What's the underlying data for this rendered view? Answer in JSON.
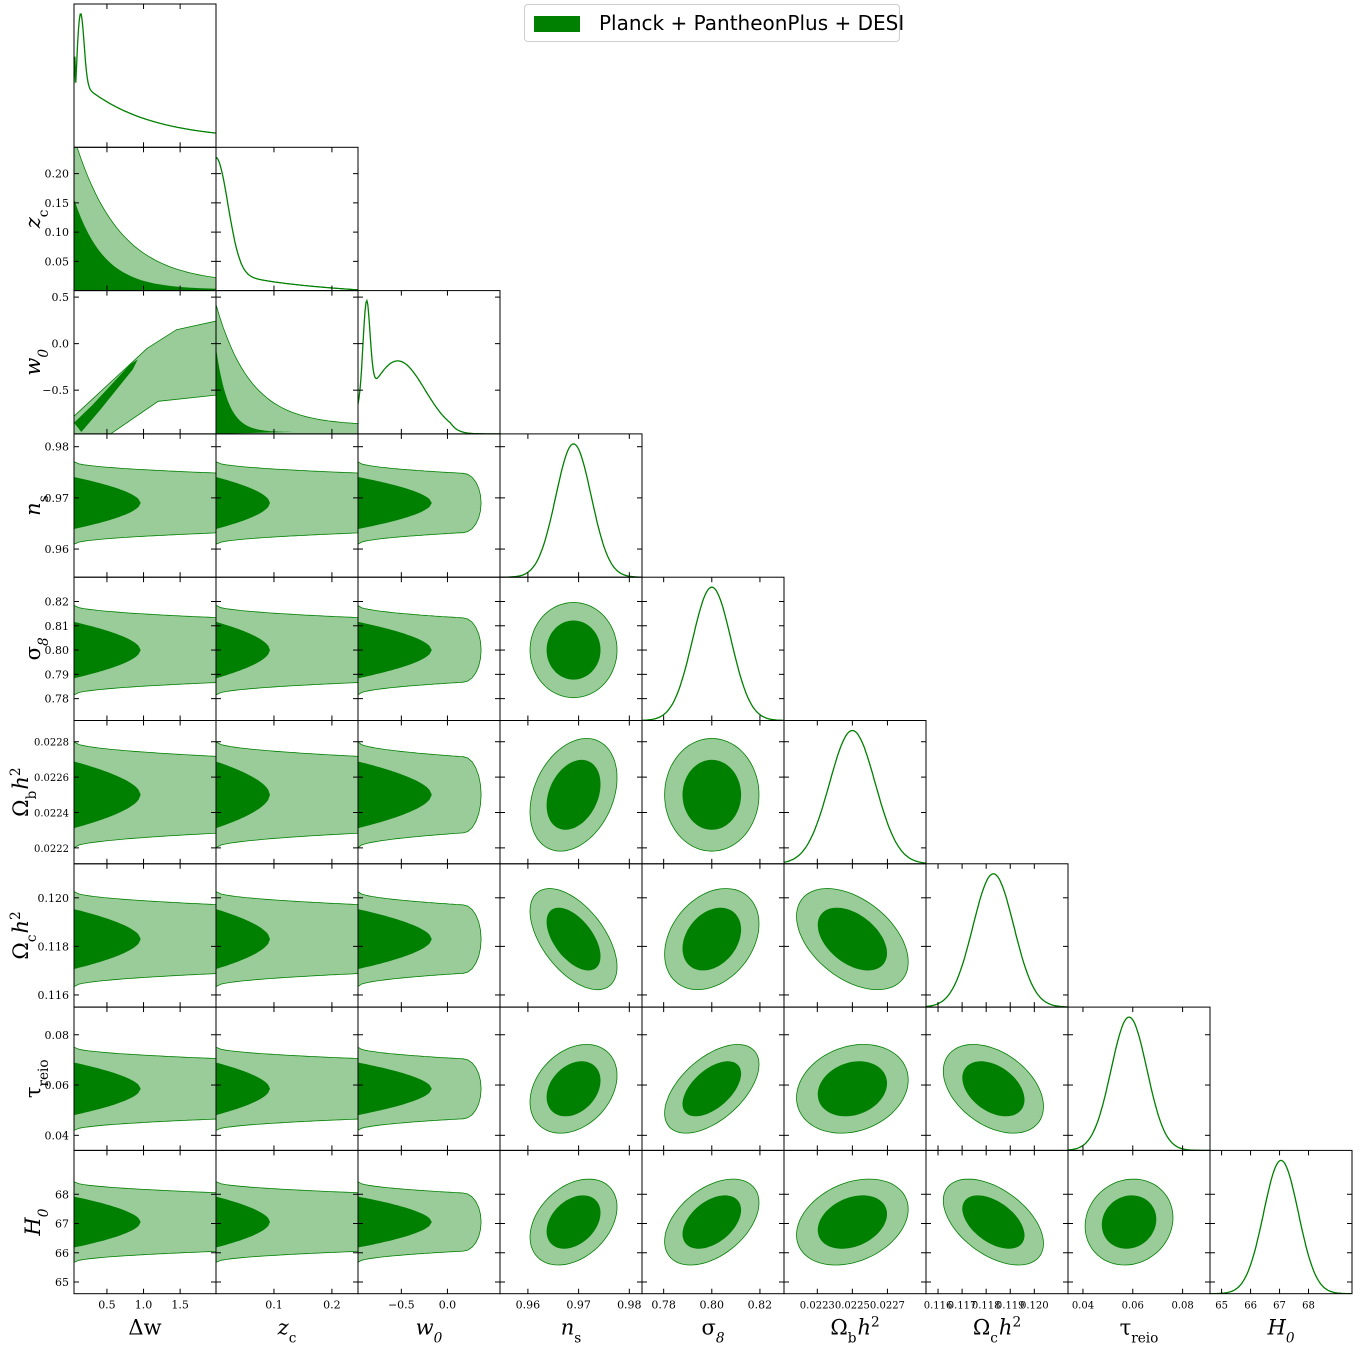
{
  "chart_data": {
    "type": "triangle",
    "legend": {
      "label": "Planck + PantheonPlus + DESI",
      "color": "#008000",
      "placement": "top-center"
    },
    "colors": {
      "inner": "#008000",
      "outer": "#99cc99",
      "line": "#008000"
    },
    "params": [
      {
        "label": "Δw",
        "range": [
          0.05,
          1.99
        ],
        "ticks": [
          0.5,
          1.0,
          1.5
        ],
        "tick_labels": [
          "0.5",
          "1.0",
          "1.5"
        ],
        "mean": 0.15,
        "sd": 0.6
      },
      {
        "label": "z_c",
        "range": [
          0.0,
          0.245
        ],
        "ticks": [
          0.05,
          0.1,
          0.15,
          0.2
        ],
        "tick_labels": [
          "0.05",
          "0.10",
          "0.15",
          "0.20"
        ],
        "x_ticks": [
          0.1,
          0.2
        ],
        "x_tick_labels": [
          "0.1",
          "0.2"
        ],
        "mean": 0.02,
        "sd": 0.06
      },
      {
        "label": "w_0",
        "range": [
          -0.97,
          0.57
        ],
        "ticks": [
          -0.5,
          0.0,
          0.5
        ],
        "tick_labels": [
          "−0.5",
          "0.0",
          "0.5"
        ],
        "x_ticks": [
          -0.5,
          0.0
        ],
        "x_tick_labels": [
          "−0.5",
          "0.0"
        ],
        "mean": -0.6,
        "sd": 0.35
      },
      {
        "label": "n_s",
        "range": [
          0.9545,
          0.9825
        ],
        "ticks": [
          0.96,
          0.97,
          0.98
        ],
        "tick_labels": [
          "0.96",
          "0.97",
          "0.98"
        ],
        "mean": 0.969,
        "sd": 0.0035
      },
      {
        "label": "σ_8",
        "range": [
          0.771,
          0.83
        ],
        "ticks": [
          0.78,
          0.79,
          0.8,
          0.81,
          0.82
        ],
        "tick_labels": [
          "0.78",
          "0.79",
          "0.80",
          "0.81",
          "0.82"
        ],
        "x_ticks": [
          0.78,
          0.8,
          0.82
        ],
        "x_tick_labels": [
          "0.78",
          "0.80",
          "0.82"
        ],
        "mean": 0.8,
        "sd": 0.008
      },
      {
        "label": "Ω_b h²",
        "range": [
          0.02211,
          0.02292
        ],
        "ticks": [
          0.0222,
          0.0224,
          0.0226,
          0.0228
        ],
        "tick_labels": [
          "0.0222",
          "0.0224",
          "0.0226",
          "0.0228"
        ],
        "x_ticks": [
          0.0223,
          0.0225,
          0.0227
        ],
        "x_tick_labels": [
          "0.0223",
          "0.0225",
          "0.0227"
        ],
        "mean": 0.0225,
        "sd": 0.00013
      },
      {
        "label": "Ω_c h²",
        "range": [
          0.1155,
          0.1214
        ],
        "ticks": [
          0.116,
          0.118,
          0.12
        ],
        "tick_labels": [
          "0.116",
          "0.118",
          "0.120"
        ],
        "x_ticks": [
          0.116,
          0.117,
          0.118,
          0.119,
          0.12
        ],
        "x_tick_labels": [
          "0.116",
          "0.117",
          "0.118",
          "0.119",
          "0.120"
        ],
        "mean": 0.1183,
        "sd": 0.00085
      },
      {
        "label": "τ_reio",
        "range": [
          0.034,
          0.091
        ],
        "ticks": [
          0.04,
          0.06,
          0.08
        ],
        "tick_labels": [
          "0.04",
          "0.06",
          "0.08"
        ],
        "x_ticks": [
          0.04,
          0.06,
          0.08
        ],
        "x_tick_labels": [
          "0.04",
          "0.06",
          "0.08"
        ],
        "mean": 0.0585,
        "sd": 0.0072
      },
      {
        "label": "H_0",
        "range": [
          64.6,
          69.5
        ],
        "ticks": [
          65,
          66,
          67,
          68
        ],
        "tick_labels": [
          "65",
          "66",
          "67",
          "68"
        ],
        "x_ticks": [
          65,
          66,
          67,
          68
        ],
        "x_tick_labels": [
          "65",
          "66",
          "67",
          "68"
        ],
        "mean": 67.05,
        "sd": 0.6
      }
    ],
    "correlations": [
      {
        "pair": [
          "n_s",
          "Ω_b h²"
        ],
        "rho": 0.3
      },
      {
        "pair": [
          "n_s",
          "Ω_c h²"
        ],
        "rho": -0.55
      },
      {
        "pair": [
          "n_s",
          "τ_reio"
        ],
        "rho": 0.3
      },
      {
        "pair": [
          "n_s",
          "H_0"
        ],
        "rho": 0.35
      },
      {
        "pair": [
          "σ_8",
          "Ω_c h²"
        ],
        "rho": 0.3
      },
      {
        "pair": [
          "σ_8",
          "τ_reio"
        ],
        "rho": 0.55
      },
      {
        "pair": [
          "σ_8",
          "H_0"
        ],
        "rho": 0.45
      },
      {
        "pair": [
          "Ω_b h²",
          "Ω_c h²"
        ],
        "rho": -0.45
      },
      {
        "pair": [
          "Ω_b h²",
          "τ_reio"
        ],
        "rho": 0.2
      },
      {
        "pair": [
          "Ω_b h²",
          "H_0"
        ],
        "rho": 0.3
      },
      {
        "pair": [
          "Ω_c h²",
          "τ_reio"
        ],
        "rho": -0.4
      },
      {
        "pair": [
          "Ω_c h²",
          "H_0"
        ],
        "rho": -0.5
      },
      {
        "pair": [
          "τ_reio",
          "H_0"
        ],
        "rho": 0.1
      }
    ]
  }
}
